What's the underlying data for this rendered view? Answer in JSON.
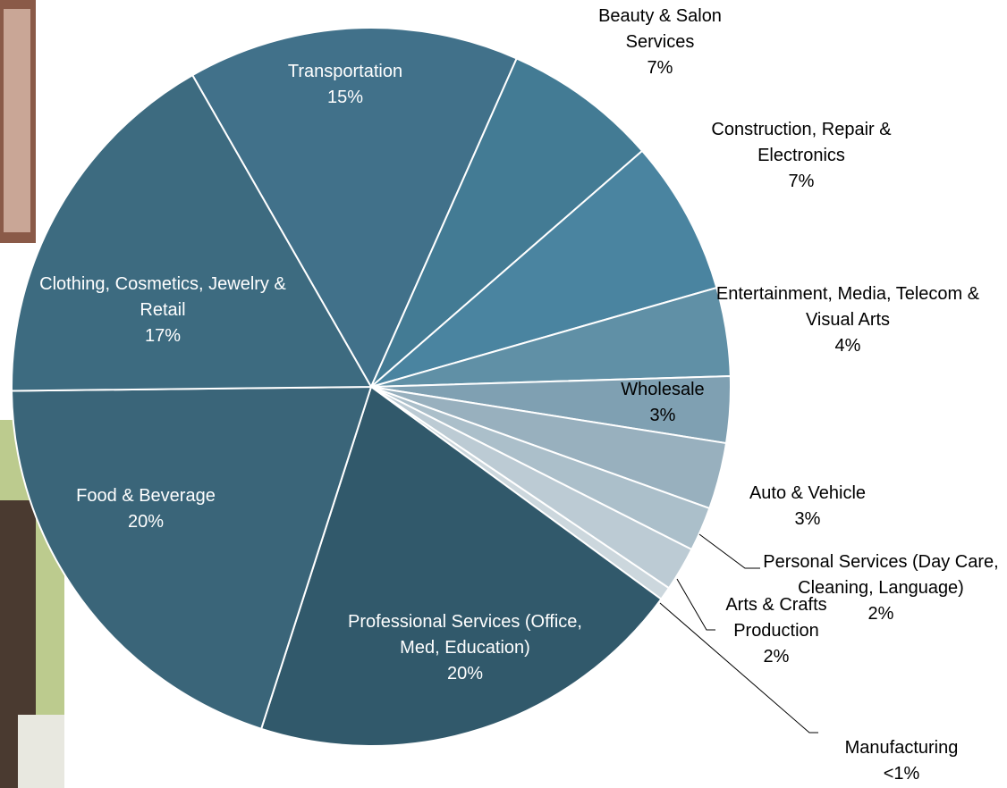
{
  "chart_data": {
    "type": "pie",
    "categories": [
      "Transportation",
      "Beauty & Salon Services",
      "Construction, Repair & Electronics",
      "Entertainment, Media, Telecom & Visual Arts",
      "Wholesale",
      "Auto & Vehicle",
      "Personal Services (Day Care, Cleaning, Language)",
      "Arts & Crafts Production",
      "Manufacturing",
      "Professional Services (Office, Med, Education)",
      "Food & Beverage",
      "Clothing, Cosmetics, Jewelry & Retail"
    ],
    "values": [
      15,
      7,
      7,
      4,
      3,
      3,
      2,
      2,
      0.6,
      20,
      20,
      17
    ],
    "value_labels": [
      "15%",
      "7%",
      "7%",
      "4%",
      "3%",
      "3%",
      "2%",
      "2%",
      "<1%",
      "20%",
      "20%",
      "17%"
    ],
    "colors": [
      "#41718a",
      "#437b94",
      "#4a84a0",
      "#6090a6",
      "#7fa0b2",
      "#98b0be",
      "#abbfca",
      "#bccbd4",
      "#ccd7dd",
      "#31596b",
      "#3a6579",
      "#3d6b80"
    ]
  }
}
